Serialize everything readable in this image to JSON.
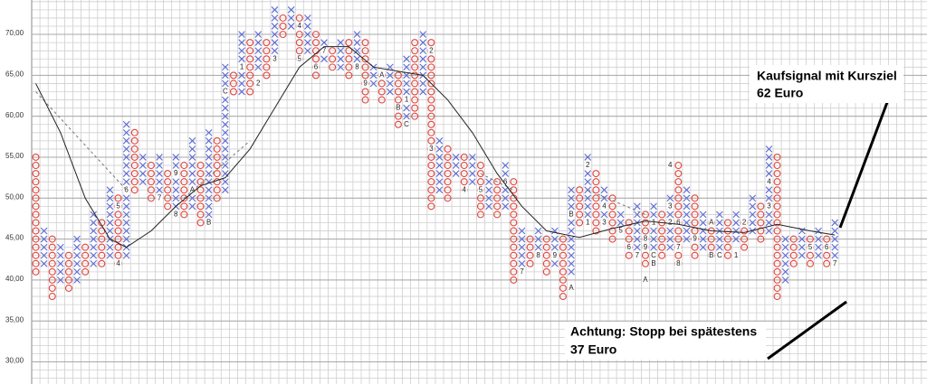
{
  "chart_data": {
    "type": "point-figure",
    "ylim": [
      27.3,
      74.2
    ],
    "yticks": [
      {
        "value": 30,
        "label": "30,00"
      },
      {
        "value": 35,
        "label": "35,00"
      },
      {
        "value": 40,
        "label": "40,00"
      },
      {
        "value": 45,
        "label": "45,00"
      },
      {
        "value": 50,
        "label": "50,00"
      },
      {
        "value": 55,
        "label": "55,00"
      },
      {
        "value": 60,
        "label": "60,00"
      },
      {
        "value": 65,
        "label": "65,00"
      },
      {
        "value": 70,
        "label": "70,00"
      }
    ],
    "x_color": "#5b6ad6",
    "o_color": "#e2453d",
    "columns": [
      {
        "kind": "O",
        "low": 41,
        "high": 55
      },
      {
        "kind": "X",
        "low": 42,
        "high": 46
      },
      {
        "kind": "O",
        "low": 38,
        "high": 45
      },
      {
        "kind": "X",
        "low": 40,
        "high": 44
      },
      {
        "kind": "O",
        "low": 39,
        "high": 43
      },
      {
        "kind": "X",
        "low": 40,
        "high": 45
      },
      {
        "kind": "O",
        "low": 41,
        "high": 44
      },
      {
        "kind": "X",
        "low": 42,
        "high": 48
      },
      {
        "kind": "O",
        "low": 42,
        "high": 47
      },
      {
        "kind": "X",
        "low": 43,
        "high": 51
      },
      {
        "kind": "O",
        "low": 42,
        "high": 50
      },
      {
        "kind": "X",
        "low": 43,
        "high": 59
      },
      {
        "kind": "O",
        "low": 51,
        "high": 58
      },
      {
        "kind": "X",
        "low": 52,
        "high": 55
      },
      {
        "kind": "O",
        "low": 50,
        "high": 54
      },
      {
        "kind": "X",
        "low": 51,
        "high": 55
      },
      {
        "kind": "O",
        "low": 49,
        "high": 53
      },
      {
        "kind": "X",
        "low": 48,
        "high": 55
      },
      {
        "kind": "O",
        "low": 48,
        "high": 54
      },
      {
        "kind": "X",
        "low": 49,
        "high": 57
      },
      {
        "kind": "O",
        "low": 47,
        "high": 54
      },
      {
        "kind": "X",
        "low": 48,
        "high": 58
      },
      {
        "kind": "O",
        "low": 50,
        "high": 57
      },
      {
        "kind": "X",
        "low": 51,
        "high": 66
      },
      {
        "kind": "O",
        "low": 63,
        "high": 65
      },
      {
        "kind": "X",
        "low": 63,
        "high": 70
      },
      {
        "kind": "O",
        "low": 63,
        "high": 69
      },
      {
        "kind": "X",
        "low": 66,
        "high": 70
      },
      {
        "kind": "O",
        "low": 65,
        "high": 69
      },
      {
        "kind": "X",
        "low": 67,
        "high": 73
      },
      {
        "kind": "O",
        "low": 70,
        "high": 72
      },
      {
        "kind": "X",
        "low": 71,
        "high": 73
      },
      {
        "kind": "O",
        "low": 67,
        "high": 72
      },
      {
        "kind": "X",
        "low": 68,
        "high": 72
      },
      {
        "kind": "O",
        "low": 65,
        "high": 70
      },
      {
        "kind": "X",
        "low": 67,
        "high": 69
      },
      {
        "kind": "O",
        "low": 66,
        "high": 68
      },
      {
        "kind": "X",
        "low": 66,
        "high": 69
      },
      {
        "kind": "O",
        "low": 65,
        "high": 69
      },
      {
        "kind": "X",
        "low": 67,
        "high": 70
      },
      {
        "kind": "O",
        "low": 62,
        "high": 69
      },
      {
        "kind": "X",
        "low": 64,
        "high": 66
      },
      {
        "kind": "O",
        "low": 62,
        "high": 65
      },
      {
        "kind": "X",
        "low": 63,
        "high": 66
      },
      {
        "kind": "O",
        "low": 59,
        "high": 65
      },
      {
        "kind": "X",
        "low": 60,
        "high": 67
      },
      {
        "kind": "O",
        "low": 60,
        "high": 69
      },
      {
        "kind": "X",
        "low": 63,
        "high": 70
      },
      {
        "kind": "O",
        "low": 49,
        "high": 69
      },
      {
        "kind": "X",
        "low": 51,
        "high": 57
      },
      {
        "kind": "O",
        "low": 50,
        "high": 56
      },
      {
        "kind": "X",
        "low": 53,
        "high": 55
      },
      {
        "kind": "O",
        "low": 51,
        "high": 55
      },
      {
        "kind": "X",
        "low": 52,
        "high": 55
      },
      {
        "kind": "O",
        "low": 48,
        "high": 54
      },
      {
        "kind": "X",
        "low": 49,
        "high": 52
      },
      {
        "kind": "O",
        "low": 48,
        "high": 52
      },
      {
        "kind": "X",
        "low": 49,
        "high": 54
      },
      {
        "kind": "O",
        "low": 40,
        "high": 52
      },
      {
        "kind": "X",
        "low": 42,
        "high": 46
      },
      {
        "kind": "O",
        "low": 42,
        "high": 45
      },
      {
        "kind": "X",
        "low": 43,
        "high": 46
      },
      {
        "kind": "O",
        "low": 41,
        "high": 45
      },
      {
        "kind": "X",
        "low": 42,
        "high": 46
      },
      {
        "kind": "O",
        "low": 38,
        "high": 45
      },
      {
        "kind": "X",
        "low": 41,
        "high": 51
      },
      {
        "kind": "O",
        "low": 47,
        "high": 51
      },
      {
        "kind": "X",
        "low": 48,
        "high": 55
      },
      {
        "kind": "O",
        "low": 46,
        "high": 53
      },
      {
        "kind": "X",
        "low": 47,
        "high": 51
      },
      {
        "kind": "O",
        "low": 45,
        "high": 50
      },
      {
        "kind": "X",
        "low": 46,
        "high": 48
      },
      {
        "kind": "O",
        "low": 43,
        "high": 47
      },
      {
        "kind": "X",
        "low": 44,
        "high": 49
      },
      {
        "kind": "O",
        "low": 42,
        "high": 48
      },
      {
        "kind": "X",
        "low": 44,
        "high": 49
      },
      {
        "kind": "O",
        "low": 43,
        "high": 48
      },
      {
        "kind": "X",
        "low": 44,
        "high": 50
      },
      {
        "kind": "O",
        "low": 42,
        "high": 54
      },
      {
        "kind": "X",
        "low": 45,
        "high": 51
      },
      {
        "kind": "O",
        "low": 43,
        "high": 50
      },
      {
        "kind": "X",
        "low": 44,
        "high": 48
      },
      {
        "kind": "O",
        "low": 43,
        "high": 47
      },
      {
        "kind": "X",
        "low": 44,
        "high": 48
      },
      {
        "kind": "O",
        "low": 43,
        "high": 47
      },
      {
        "kind": "X",
        "low": 45,
        "high": 48
      },
      {
        "kind": "O",
        "low": 44,
        "high": 47
      },
      {
        "kind": "X",
        "low": 46,
        "high": 50
      },
      {
        "kind": "O",
        "low": 45,
        "high": 49
      },
      {
        "kind": "X",
        "low": 46,
        "high": 56
      },
      {
        "kind": "O",
        "low": 38,
        "high": 55
      },
      {
        "kind": "X",
        "low": 40,
        "high": 45
      },
      {
        "kind": "O",
        "low": 42,
        "high": 45
      },
      {
        "kind": "X",
        "low": 43,
        "high": 46
      },
      {
        "kind": "O",
        "low": 42,
        "high": 45
      },
      {
        "kind": "X",
        "low": 43,
        "high": 46
      },
      {
        "kind": "O",
        "low": 42,
        "high": 45
      },
      {
        "kind": "X",
        "low": 43,
        "high": 47
      }
    ],
    "markers": [
      {
        "label": "4",
        "column": 10,
        "value": 42
      },
      {
        "label": "5",
        "column": 10,
        "value": 49
      },
      {
        "label": "6",
        "column": 11,
        "value": 51
      },
      {
        "label": "7",
        "column": 15,
        "value": 50
      },
      {
        "label": "8",
        "column": 17,
        "value": 48
      },
      {
        "label": "9",
        "column": 17,
        "value": 53
      },
      {
        "label": "A",
        "column": 19,
        "value": 51
      },
      {
        "label": "B",
        "column": 21,
        "value": 47
      },
      {
        "label": "C",
        "column": 23,
        "value": 63
      },
      {
        "label": "1",
        "column": 25,
        "value": 66
      },
      {
        "label": "2",
        "column": 27,
        "value": 64
      },
      {
        "label": "3",
        "column": 29,
        "value": 67
      },
      {
        "label": "4",
        "column": 32,
        "value": 71
      },
      {
        "label": "5",
        "column": 32,
        "value": 67
      },
      {
        "label": "6",
        "column": 34,
        "value": 66
      },
      {
        "label": "7",
        "column": 35,
        "value": 68
      },
      {
        "label": "8",
        "column": 39,
        "value": 66
      },
      {
        "label": "9",
        "column": 40,
        "value": 64
      },
      {
        "label": "A",
        "column": 42,
        "value": 65
      },
      {
        "label": "B",
        "column": 44,
        "value": 61
      },
      {
        "label": "1",
        "column": 45,
        "value": 62
      },
      {
        "label": "C",
        "column": 45,
        "value": 59
      },
      {
        "label": "2",
        "column": 48,
        "value": 68
      },
      {
        "label": "3",
        "column": 48,
        "value": 56
      },
      {
        "label": "4",
        "column": 52,
        "value": 51
      },
      {
        "label": "5",
        "column": 54,
        "value": 51
      },
      {
        "label": "6",
        "column": 57,
        "value": 52
      },
      {
        "label": "7",
        "column": 59,
        "value": 41
      },
      {
        "label": "8",
        "column": 61,
        "value": 43
      },
      {
        "label": "9",
        "column": 63,
        "value": 43
      },
      {
        "label": "A",
        "column": 65,
        "value": 39
      },
      {
        "label": "B",
        "column": 65,
        "value": 48
      },
      {
        "label": "2",
        "column": 67,
        "value": 54
      },
      {
        "label": "1",
        "column": 67,
        "value": 47
      },
      {
        "label": "3",
        "column": 69,
        "value": 47
      },
      {
        "label": "4",
        "column": 69,
        "value": 49
      },
      {
        "label": "5",
        "column": 71,
        "value": 46
      },
      {
        "label": "6",
        "column": 72,
        "value": 44
      },
      {
        "label": "7",
        "column": 73,
        "value": 43
      },
      {
        "label": "8",
        "column": 74,
        "value": 45
      },
      {
        "label": "9",
        "column": 74,
        "value": 44
      },
      {
        "label": "A",
        "column": 74,
        "value": 40
      },
      {
        "label": "B",
        "column": 75,
        "value": 42
      },
      {
        "label": "C",
        "column": 75,
        "value": 43
      },
      {
        "label": "1",
        "column": 75,
        "value": 47
      },
      {
        "label": "4",
        "column": 77,
        "value": 54
      },
      {
        "label": "2",
        "column": 77,
        "value": 47
      },
      {
        "label": "3",
        "column": 77,
        "value": 49
      },
      {
        "label": "6",
        "column": 78,
        "value": 47
      },
      {
        "label": "7",
        "column": 78,
        "value": 44
      },
      {
        "label": "8",
        "column": 78,
        "value": 42
      },
      {
        "label": "9",
        "column": 80,
        "value": 45
      },
      {
        "label": "A",
        "column": 82,
        "value": 47
      },
      {
        "label": "B",
        "column": 82,
        "value": 43
      },
      {
        "label": "C",
        "column": 83,
        "value": 43
      },
      {
        "label": "1",
        "column": 85,
        "value": 43
      },
      {
        "label": "2",
        "column": 86,
        "value": 47
      },
      {
        "label": "3",
        "column": 89,
        "value": 49
      },
      {
        "label": "4",
        "column": 89,
        "value": 52
      },
      {
        "label": "5",
        "column": 94,
        "value": 44
      },
      {
        "label": "6",
        "column": 96,
        "value": 44
      },
      {
        "label": "7",
        "column": 97,
        "value": 42
      }
    ],
    "moving_average": {
      "x": [
        0,
        3,
        6,
        9,
        11,
        14,
        17,
        20,
        23,
        26,
        29,
        32,
        35,
        38,
        41,
        44,
        47,
        50,
        53,
        56,
        59,
        62,
        66,
        70,
        74,
        78,
        82,
        86,
        90,
        94,
        97
      ],
      "values": [
        64,
        58,
        50,
        45,
        44,
        46,
        49,
        51.5,
        52.5,
        56,
        61,
        66,
        68.5,
        68.5,
        66,
        65.5,
        65,
        62,
        58,
        53,
        49,
        46,
        45.2,
        46.3,
        47.2,
        46.8,
        46,
        45.8,
        46.8,
        46,
        45.5
      ]
    },
    "trendlines": [
      {
        "x": [
          0,
          11
        ],
        "values": [
          63,
          51
        ]
      },
      {
        "x": [
          18,
          26
        ],
        "values": [
          50,
          57
        ]
      },
      {
        "x": [
          54,
          58
        ],
        "values": [
          53,
          51
        ]
      },
      {
        "x": [
          67,
          74
        ],
        "values": [
          51,
          48
        ]
      }
    ],
    "annotations": [
      {
        "lines": [
          "Kaufsignal mit Kursziel",
          "62 Euro"
        ]
      },
      {
        "lines": [
          "Achtung: Stopp bei spätestens",
          "37 Euro"
        ]
      }
    ]
  }
}
